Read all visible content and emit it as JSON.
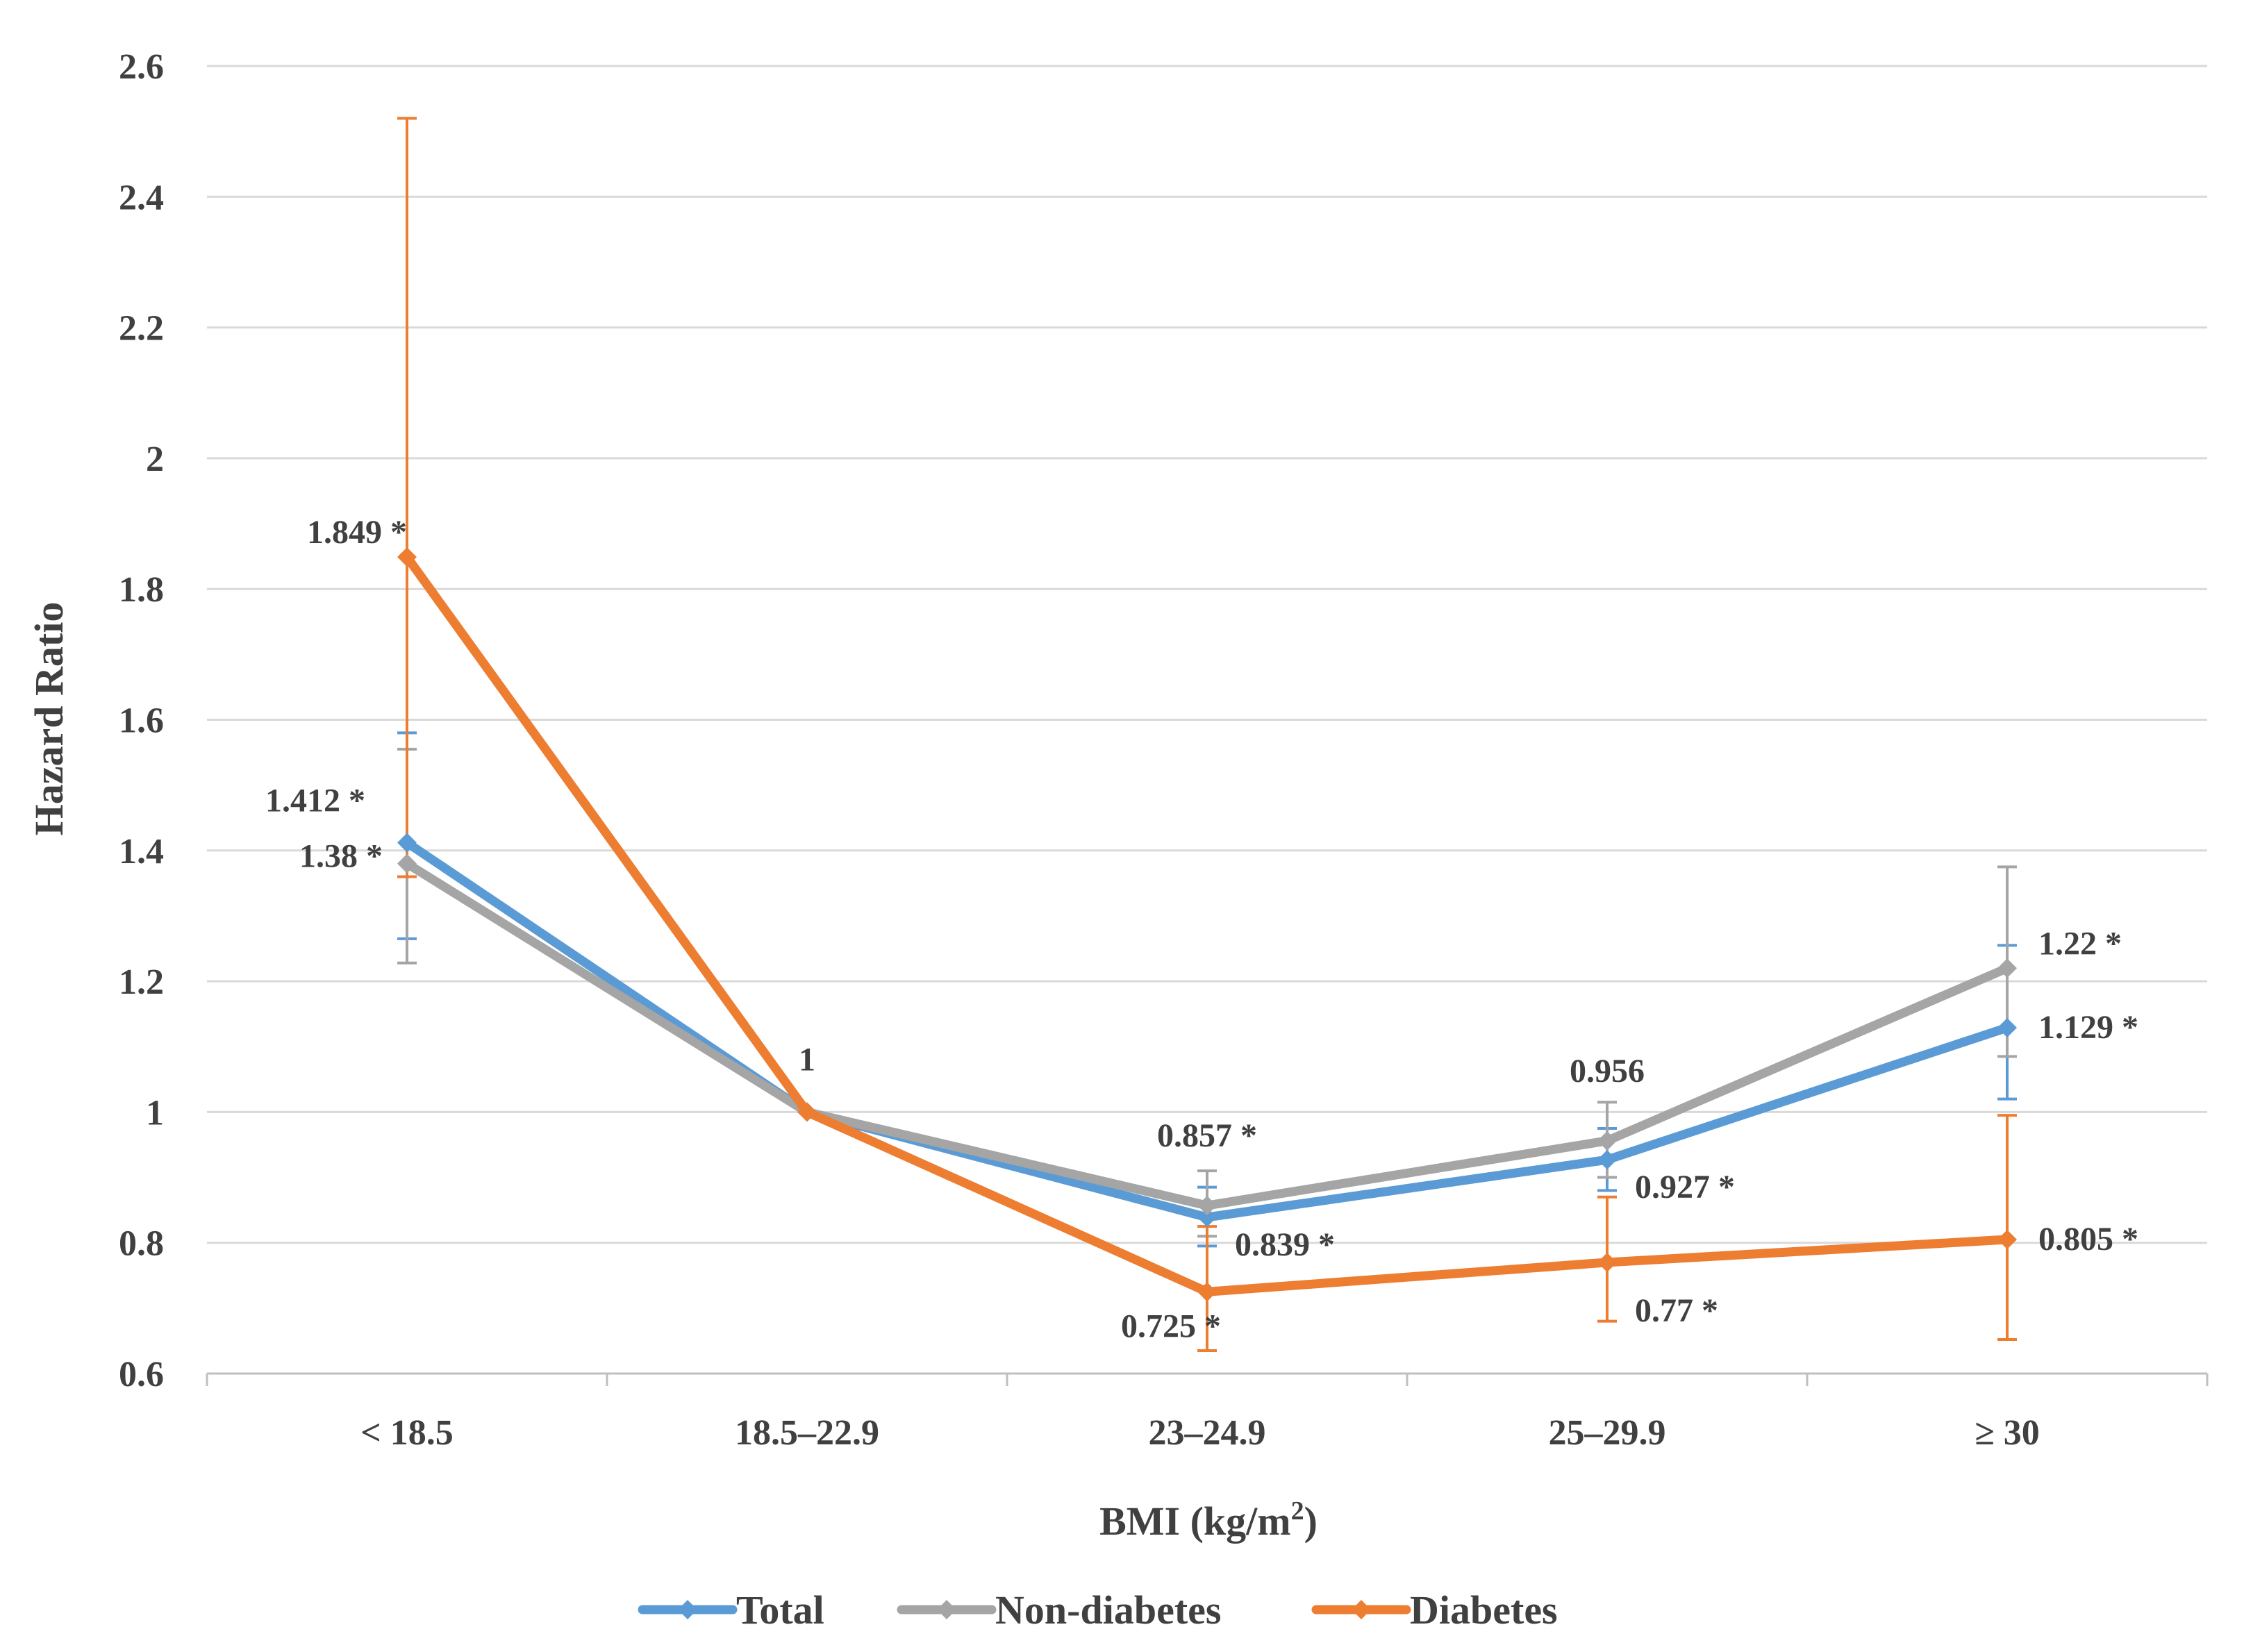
{
  "chart_data": {
    "type": "line",
    "title": "",
    "xlabel": "BMI (kg/m²)",
    "xlabel_main": "BMI (kg/m",
    "xlabel_sup": "2",
    "xlabel_close": ")",
    "ylabel": "Hazard Ratio",
    "ylim": [
      0.6,
      2.6
    ],
    "y_ticks": [
      "0.6",
      "0.8",
      "1",
      "1.2",
      "1.4",
      "1.6",
      "1.8",
      "2",
      "2.2",
      "2.4",
      "2.6"
    ],
    "y_tick_values": [
      0.6,
      0.8,
      1.0,
      1.2,
      1.4,
      1.6,
      1.8,
      2.0,
      2.2,
      2.4,
      2.6
    ],
    "categories": [
      "< 18.5",
      "18.5–22.9",
      "23–24.9",
      "25–29.9",
      "≥ 30"
    ],
    "legend_position": "bottom",
    "grid": true,
    "series": [
      {
        "name": "Total",
        "color": "#5b9bd5",
        "values": [
          1.412,
          1.0,
          0.839,
          0.927,
          1.129
        ],
        "ci_low": [
          1.265,
          null,
          0.795,
          0.88,
          1.02
        ],
        "ci_high": [
          1.58,
          null,
          0.885,
          0.975,
          1.255
        ],
        "labels": [
          "1.412 *",
          "",
          "0.839 *",
          "0.927 *",
          "1.129 *"
        ]
      },
      {
        "name": "Non-diabetes",
        "color": "#a5a5a5",
        "values": [
          1.38,
          1.0,
          0.857,
          0.956,
          1.22
        ],
        "ci_low": [
          1.228,
          null,
          0.81,
          0.9,
          1.085
        ],
        "ci_high": [
          1.555,
          null,
          0.91,
          1.015,
          1.375
        ],
        "labels": [
          "1.38 *",
          "1",
          "0.857 *",
          "0.956",
          "1.22 *"
        ]
      },
      {
        "name": "Diabetes",
        "color": "#ed7d31",
        "values": [
          1.849,
          1.0,
          0.725,
          0.77,
          0.805
        ],
        "ci_low": [
          1.36,
          null,
          0.635,
          0.68,
          0.652
        ],
        "ci_high": [
          2.52,
          null,
          0.825,
          0.87,
          0.995
        ],
        "labels": [
          "1.849 *",
          "",
          "0.725 *",
          "0.77 *",
          "0.805 *"
        ]
      }
    ]
  }
}
